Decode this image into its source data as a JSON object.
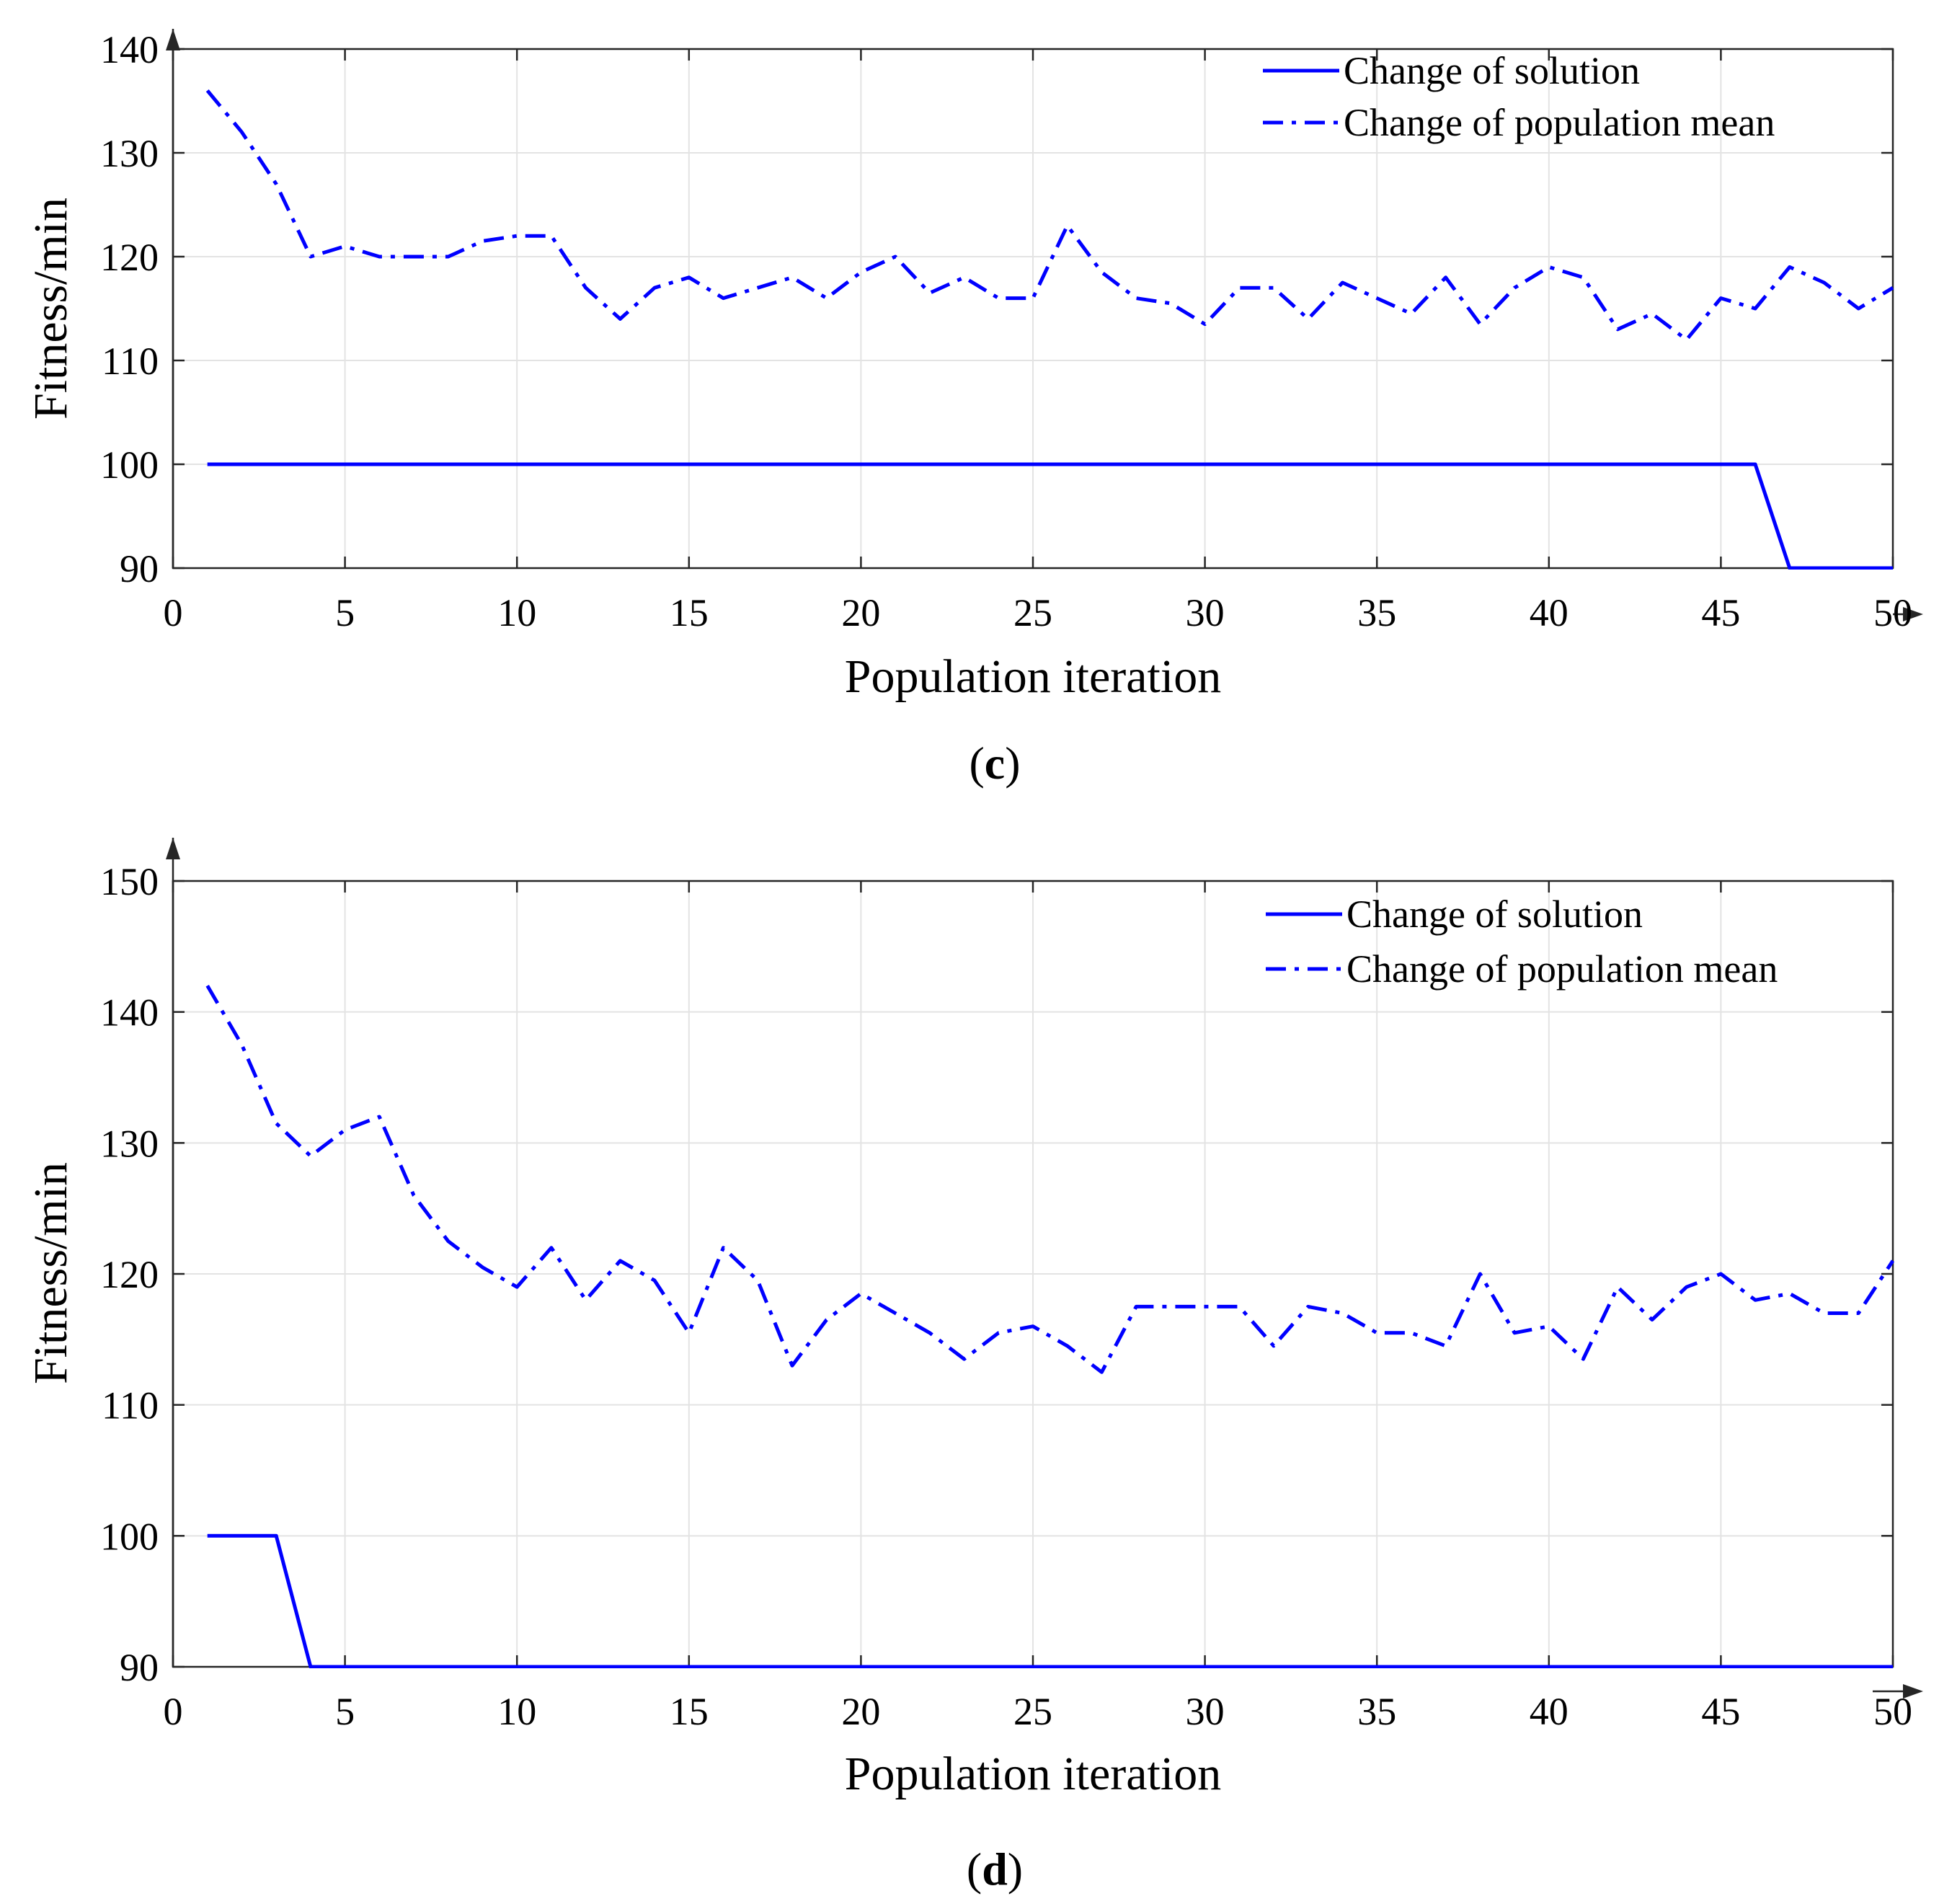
{
  "colors": {
    "series": "#0000ff",
    "axis": "#262626",
    "grid": "#e3e3e3",
    "background": "#ffffff"
  },
  "chart_data": [
    {
      "type": "line",
      "panel_label": "c",
      "title": "",
      "xlabel": "Population iteration",
      "ylabel": "Fitness/min",
      "xlim": [
        0,
        50
      ],
      "ylim": [
        90,
        140
      ],
      "xticks": [
        0,
        5,
        10,
        15,
        20,
        25,
        30,
        35,
        40,
        45,
        50
      ],
      "yticks": [
        90,
        100,
        110,
        120,
        130,
        140
      ],
      "grid": true,
      "legend_position": "top-right",
      "series": [
        {
          "name": "Change of solution",
          "style": "solid",
          "x": [
            1,
            2,
            3,
            4,
            5,
            6,
            7,
            8,
            9,
            10,
            11,
            12,
            13,
            14,
            15,
            16,
            17,
            18,
            19,
            20,
            21,
            22,
            23,
            24,
            25,
            26,
            27,
            28,
            29,
            30,
            31,
            32,
            33,
            34,
            35,
            36,
            37,
            38,
            39,
            40,
            41,
            42,
            43,
            44,
            45,
            46,
            47,
            48,
            49,
            50
          ],
          "values": [
            100,
            100,
            100,
            100,
            100,
            100,
            100,
            100,
            100,
            100,
            100,
            100,
            100,
            100,
            100,
            100,
            100,
            100,
            100,
            100,
            100,
            100,
            100,
            100,
            100,
            100,
            100,
            100,
            100,
            100,
            100,
            100,
            100,
            100,
            100,
            100,
            100,
            100,
            100,
            100,
            100,
            100,
            100,
            100,
            100,
            100,
            90,
            90,
            90,
            90
          ]
        },
        {
          "name": "Change of population mean",
          "style": "dash-dot",
          "x": [
            1,
            2,
            3,
            4,
            5,
            6,
            7,
            8,
            9,
            10,
            11,
            12,
            13,
            14,
            15,
            16,
            17,
            18,
            19,
            20,
            21,
            22,
            23,
            24,
            25,
            26,
            27,
            28,
            29,
            30,
            31,
            32,
            33,
            34,
            35,
            36,
            37,
            38,
            39,
            40,
            41,
            42,
            43,
            44,
            45,
            46,
            47,
            48,
            49,
            50
          ],
          "values": [
            136,
            132,
            127,
            120,
            121,
            120,
            120,
            120,
            121.5,
            122,
            122,
            117,
            114,
            117,
            118,
            116,
            117,
            118,
            116,
            118.5,
            120,
            116.5,
            118,
            116,
            116,
            123,
            118.5,
            116,
            115.5,
            113.5,
            117,
            117,
            114,
            117.5,
            116,
            114.5,
            118,
            113.5,
            117,
            119,
            118,
            113,
            114.5,
            112,
            116,
            115,
            119,
            117.5,
            115,
            117
          ]
        }
      ]
    },
    {
      "type": "line",
      "panel_label": "d",
      "title": "",
      "xlabel": "Population iteration",
      "ylabel": "Fitness/min",
      "xlim": [
        0,
        50
      ],
      "ylim": [
        90,
        150
      ],
      "xticks": [
        0,
        5,
        10,
        15,
        20,
        25,
        30,
        35,
        40,
        45,
        50
      ],
      "yticks": [
        90,
        100,
        110,
        120,
        130,
        140,
        150
      ],
      "grid": true,
      "legend_position": "top-right",
      "series": [
        {
          "name": "Change of solution",
          "style": "solid",
          "x": [
            1,
            2,
            3,
            4,
            5,
            6,
            7,
            8,
            9,
            10,
            11,
            12,
            13,
            14,
            15,
            16,
            17,
            18,
            19,
            20,
            21,
            22,
            23,
            24,
            25,
            26,
            27,
            28,
            29,
            30,
            31,
            32,
            33,
            34,
            35,
            36,
            37,
            38,
            39,
            40,
            41,
            42,
            43,
            44,
            45,
            46,
            47,
            48,
            49,
            50
          ],
          "values": [
            100,
            100,
            100,
            90,
            90,
            90,
            90,
            90,
            90,
            90,
            90,
            90,
            90,
            90,
            90,
            90,
            90,
            90,
            90,
            90,
            90,
            90,
            90,
            90,
            90,
            90,
            90,
            90,
            90,
            90,
            90,
            90,
            90,
            90,
            90,
            90,
            90,
            90,
            90,
            90,
            90,
            90,
            90,
            90,
            90,
            90,
            90,
            90,
            90,
            90
          ]
        },
        {
          "name": "Change of population mean",
          "style": "dash-dot",
          "x": [
            1,
            2,
            3,
            4,
            5,
            6,
            7,
            8,
            9,
            10,
            11,
            12,
            13,
            14,
            15,
            16,
            17,
            18,
            19,
            20,
            21,
            22,
            23,
            24,
            25,
            26,
            27,
            28,
            29,
            30,
            31,
            32,
            33,
            34,
            35,
            36,
            37,
            38,
            39,
            40,
            41,
            42,
            43,
            44,
            45,
            46,
            47,
            48,
            49,
            50
          ],
          "values": [
            142,
            137.5,
            131.5,
            129,
            131,
            132,
            126,
            122.5,
            120.5,
            119,
            122,
            118,
            121,
            119.5,
            115.5,
            122,
            119.5,
            113,
            116.5,
            118.5,
            117,
            115.5,
            113.5,
            115.5,
            116,
            114.5,
            112.5,
            117.5,
            117.5,
            117.5,
            117.5,
            114.5,
            117.5,
            117,
            115.5,
            115.5,
            114.5,
            120,
            115.5,
            116,
            113.5,
            119,
            116.5,
            119,
            120,
            118,
            118.5,
            117,
            117,
            121
          ]
        }
      ]
    }
  ]
}
